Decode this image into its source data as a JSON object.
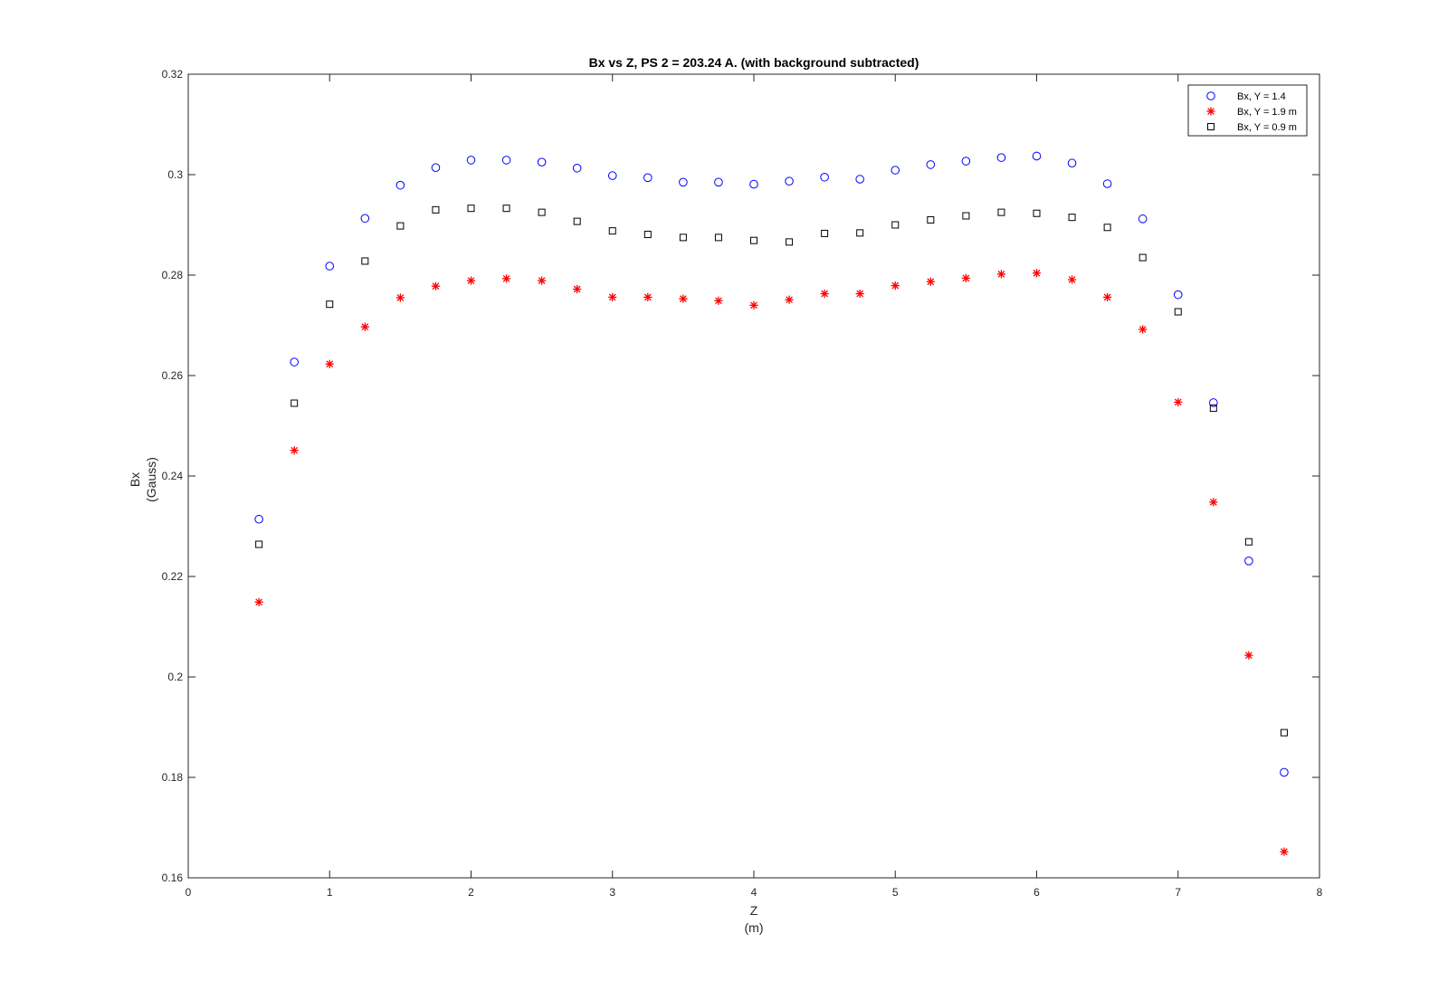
{
  "chart_data": {
    "type": "scatter",
    "title": "Bx vs Z, PS 2 =  203.24 A. (with background subtracted)",
    "xlabel": [
      "Z",
      "(m)"
    ],
    "ylabel": [
      "Bx",
      "(Gauss)"
    ],
    "xlim": [
      0,
      8
    ],
    "ylim": [
      0.16,
      0.32
    ],
    "xticks": [
      0,
      1,
      2,
      3,
      4,
      5,
      6,
      7,
      8
    ],
    "xtick_labels": [
      "0",
      "1",
      "2",
      "3",
      "4",
      "5",
      "6",
      "7",
      "8"
    ],
    "yticks": [
      0.16,
      0.18,
      0.2,
      0.22,
      0.24,
      0.26,
      0.28,
      0.3,
      0.32
    ],
    "ytick_labels": [
      "0.16",
      "0.18",
      "0.2",
      "0.22",
      "0.24",
      "0.26",
      "0.28",
      "0.3",
      "0.32"
    ],
    "grid": false,
    "legend_position": "top-right",
    "x": [
      0.5,
      0.75,
      1.0,
      1.25,
      1.5,
      1.75,
      2.0,
      2.25,
      2.5,
      2.75,
      3.0,
      3.25,
      3.5,
      3.75,
      4.0,
      4.25,
      4.5,
      4.75,
      5.0,
      5.25,
      5.5,
      5.75,
      6.0,
      6.25,
      6.5,
      6.75,
      7.0,
      7.25,
      7.5,
      7.75
    ],
    "series": [
      {
        "name": "Bx, Y = 1.4",
        "marker": "circle",
        "color": "#0000ff",
        "values": [
          0.2314,
          0.2627,
          0.2818,
          0.2913,
          0.2979,
          0.3014,
          0.3029,
          0.3029,
          0.3025,
          0.3013,
          0.2998,
          0.2994,
          0.2985,
          0.2985,
          0.2981,
          0.2987,
          0.2995,
          0.2991,
          0.3009,
          0.302,
          0.3027,
          0.3034,
          0.3037,
          0.3023,
          0.2982,
          0.2912,
          0.2761,
          0.2546,
          0.2231,
          0.181
        ]
      },
      {
        "name": "Bx, Y = 1.9 m",
        "marker": "star",
        "color": "#ff0000",
        "values": [
          0.2149,
          0.2451,
          0.2623,
          0.2697,
          0.2755,
          0.2778,
          0.2789,
          0.2793,
          0.2789,
          0.2772,
          0.2756,
          0.2756,
          0.2753,
          0.2749,
          0.274,
          0.2751,
          0.2763,
          0.2763,
          0.2779,
          0.2787,
          0.2794,
          0.2802,
          0.2804,
          0.2791,
          0.2756,
          0.2692,
          0.2547,
          0.2348,
          0.2043,
          0.1652
        ]
      },
      {
        "name": "Bx, Y = 0.9 m",
        "marker": "square",
        "color": "#000000",
        "values": [
          0.2264,
          0.2545,
          0.2742,
          0.2828,
          0.2898,
          0.293,
          0.2933,
          0.2933,
          0.2925,
          0.2907,
          0.2888,
          0.2881,
          0.2875,
          0.2875,
          0.2869,
          0.2866,
          0.2883,
          0.2884,
          0.29,
          0.291,
          0.2918,
          0.2925,
          0.2923,
          0.2915,
          0.2895,
          0.2835,
          0.2727,
          0.2535,
          0.2269,
          0.1889
        ]
      }
    ]
  }
}
